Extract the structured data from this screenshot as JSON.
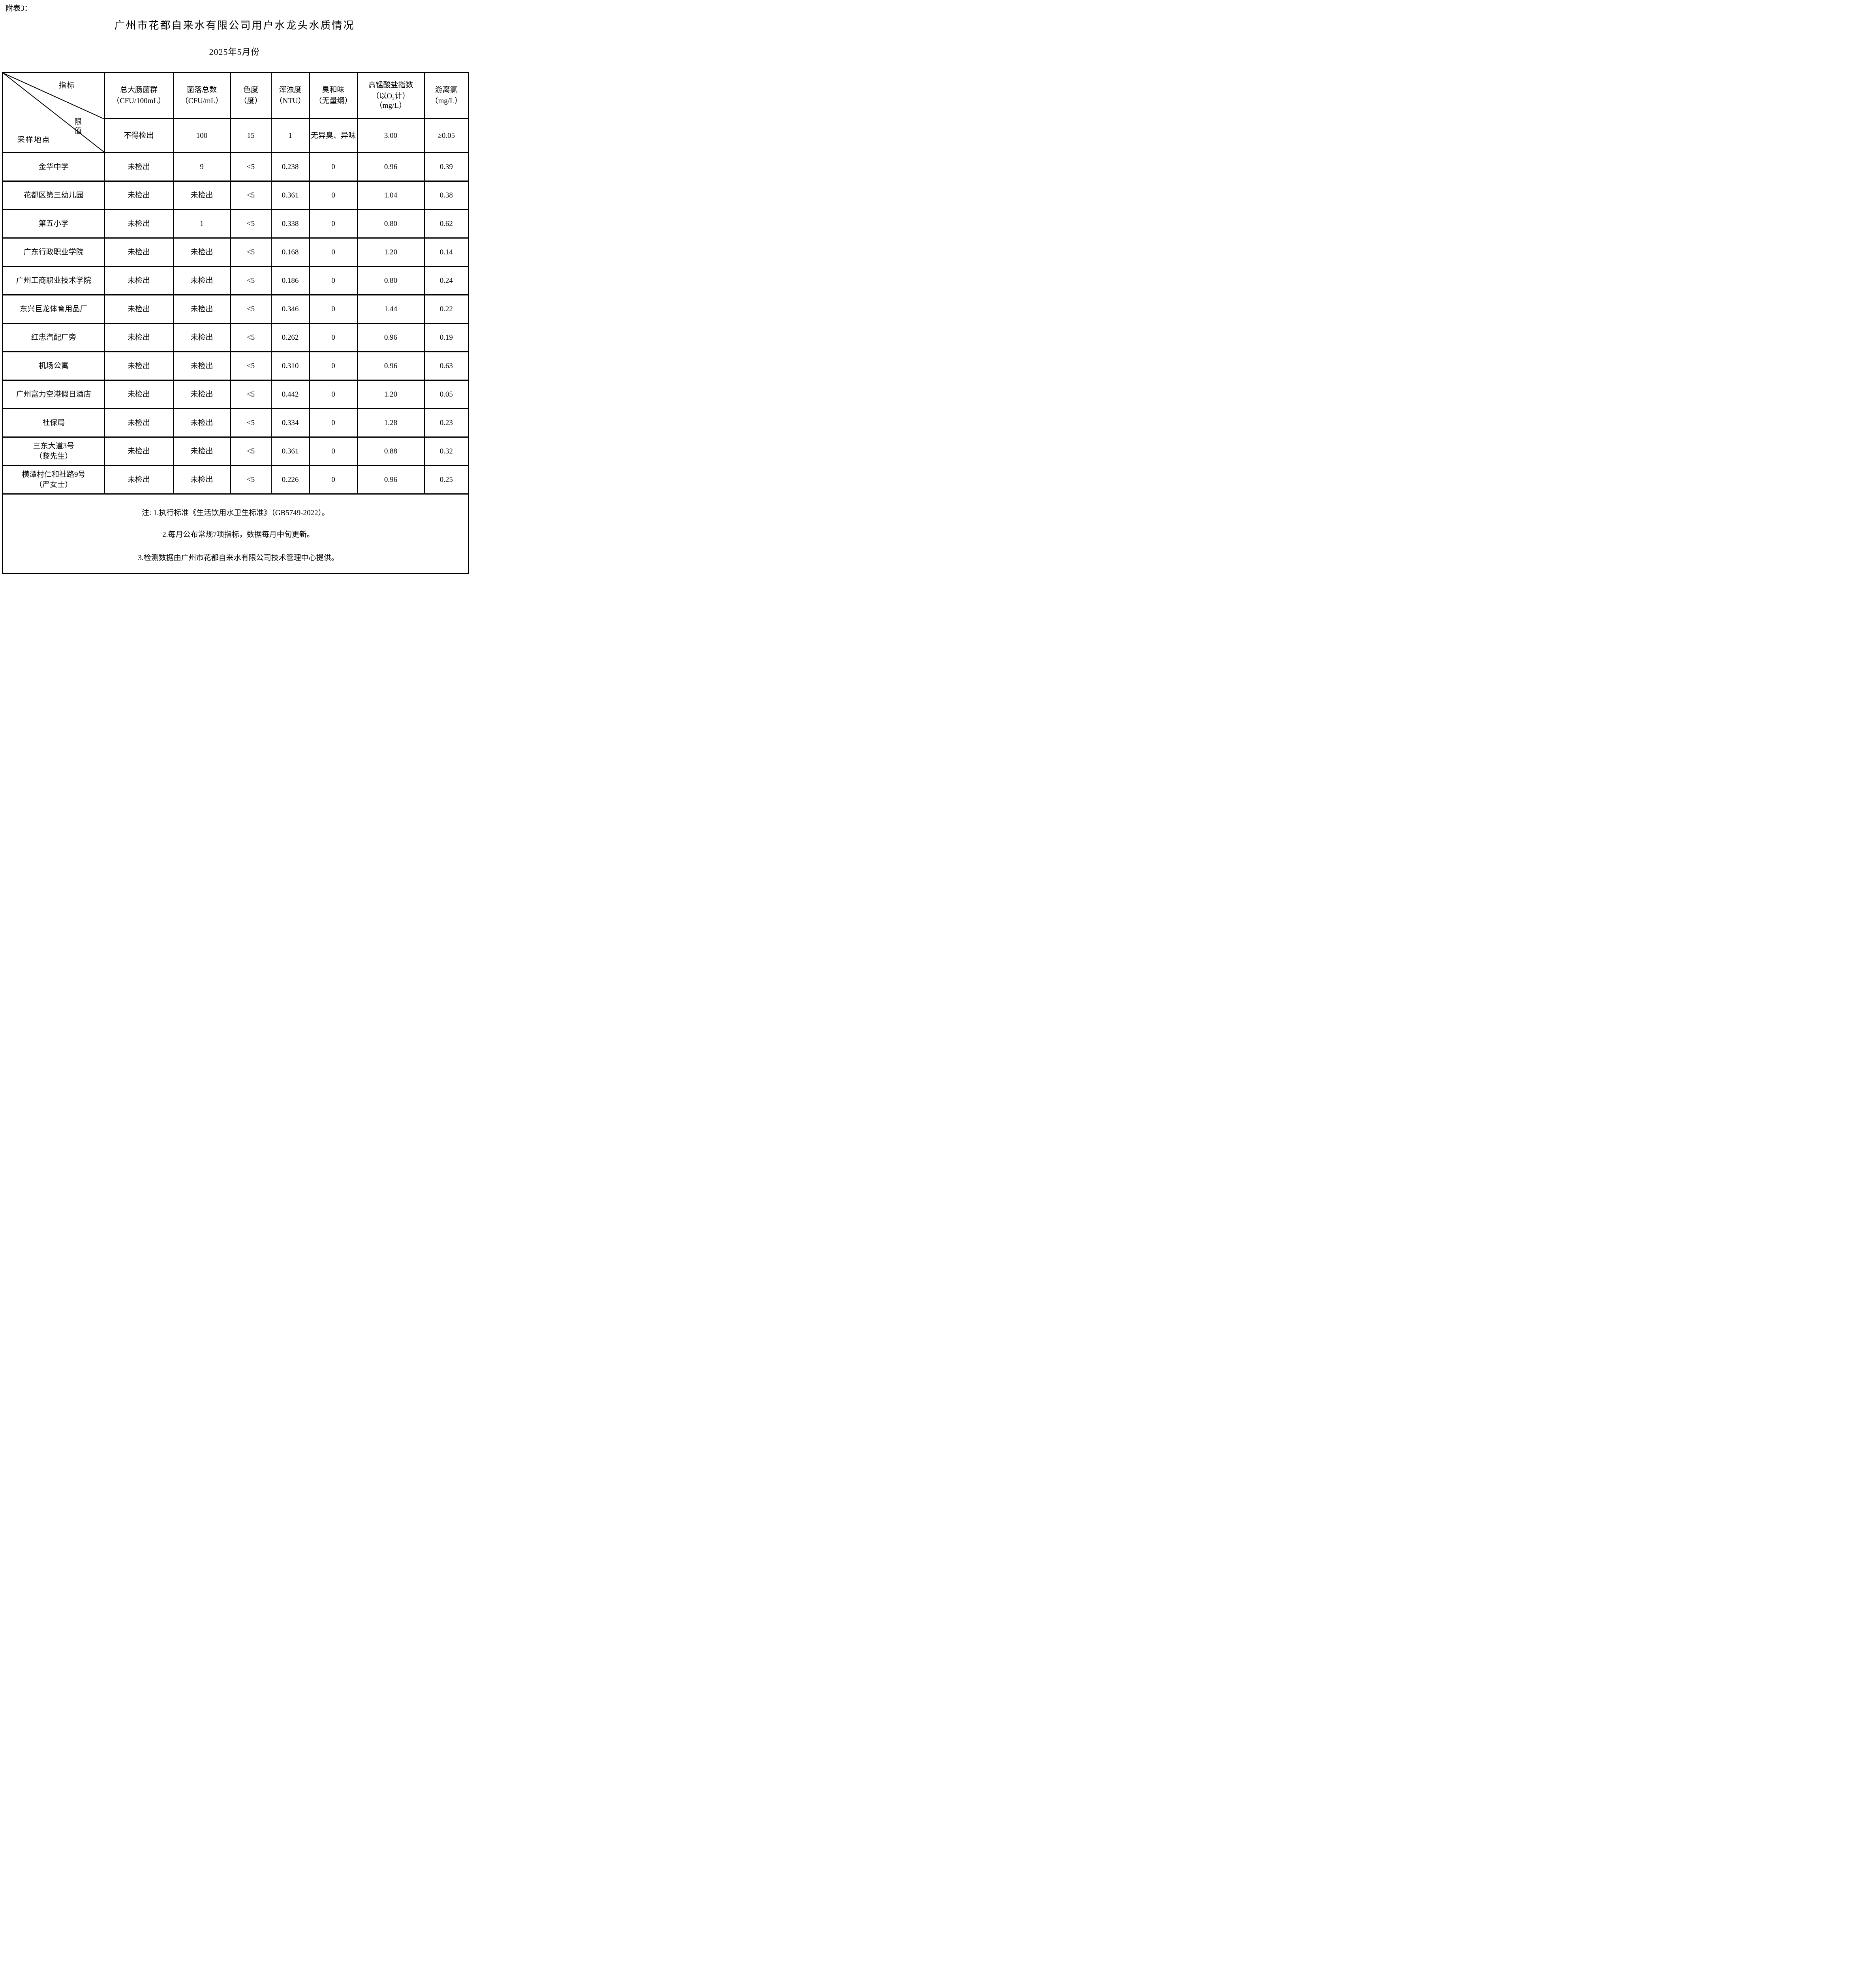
{
  "page": {
    "annotation": "附表3：",
    "title": "广州市花都自来水有限公司用户水龙头水质情况",
    "subtitle": "2025年5月份"
  },
  "table": {
    "corner": {
      "indicator_label": "指标",
      "limit_label": "限值",
      "site_label": "采样地点"
    },
    "columns": [
      {
        "name": "总大肠菌群",
        "unit": "（CFU/100mL）",
        "limit": "不得检出"
      },
      {
        "name": "菌落总数",
        "unit": "（CFU/mL）",
        "limit": "100"
      },
      {
        "name": "色度",
        "unit": "（度）",
        "limit": "15"
      },
      {
        "name": "浑浊度",
        "unit": "（NTU）",
        "limit": "1"
      },
      {
        "name": "臭和味",
        "unit": "（无量纲）",
        "limit": "无异臭、异味"
      },
      {
        "name": "高锰酸盐指数",
        "unit": "（以O₂计）\n（mg/L）",
        "limit": "3.00"
      },
      {
        "name": "游离氯",
        "unit": "（mg/L）",
        "limit": "≥0.05"
      }
    ],
    "rows": [
      {
        "site": "金华中学",
        "values": [
          "未检出",
          "9",
          "<5",
          "0.238",
          "0",
          "0.96",
          "0.39"
        ]
      },
      {
        "site": "花都区第三幼儿园",
        "values": [
          "未检出",
          "未检出",
          "<5",
          "0.361",
          "0",
          "1.04",
          "0.38"
        ]
      },
      {
        "site": "第五小学",
        "values": [
          "未检出",
          "1",
          "<5",
          "0.338",
          "0",
          "0.80",
          "0.62"
        ]
      },
      {
        "site": "广东行政职业学院",
        "values": [
          "未检出",
          "未检出",
          "<5",
          "0.168",
          "0",
          "1.20",
          "0.14"
        ]
      },
      {
        "site": "广州工商职业技术学院",
        "values": [
          "未检出",
          "未检出",
          "<5",
          "0.186",
          "0",
          "0.80",
          "0.24"
        ]
      },
      {
        "site": "东兴巨龙体育用品厂",
        "values": [
          "未检出",
          "未检出",
          "<5",
          "0.346",
          "0",
          "1.44",
          "0.22"
        ]
      },
      {
        "site": "红忠汽配厂旁",
        "values": [
          "未检出",
          "未检出",
          "<5",
          "0.262",
          "0",
          "0.96",
          "0.19"
        ]
      },
      {
        "site": "机场公寓",
        "values": [
          "未检出",
          "未检出",
          "<5",
          "0.310",
          "0",
          "0.96",
          "0.63"
        ]
      },
      {
        "site": "广州富力空港假日酒店",
        "values": [
          "未检出",
          "未检出",
          "<5",
          "0.442",
          "0",
          "1.20",
          "0.05"
        ]
      },
      {
        "site": "社保局",
        "values": [
          "未检出",
          "未检出",
          "<5",
          "0.334",
          "0",
          "1.28",
          "0.23"
        ]
      },
      {
        "site": "三东大道3号\n（黎先生）",
        "values": [
          "未检出",
          "未检出",
          "<5",
          "0.361",
          "0",
          "0.88",
          "0.32"
        ]
      },
      {
        "site": "横潭村仁和社路9号\n（严女士）",
        "values": [
          "未检出",
          "未检出",
          "<5",
          "0.226",
          "0",
          "0.96",
          "0.25"
        ]
      }
    ],
    "notes": [
      "注: 1.执行标准《生活饮用水卫生标准》（GB5749-2022）。",
      "2.每月公布常规7项指标，数据每月中旬更新。",
      "3.检测数据由广州市花都自来水有限公司技术管理中心提供。"
    ]
  }
}
